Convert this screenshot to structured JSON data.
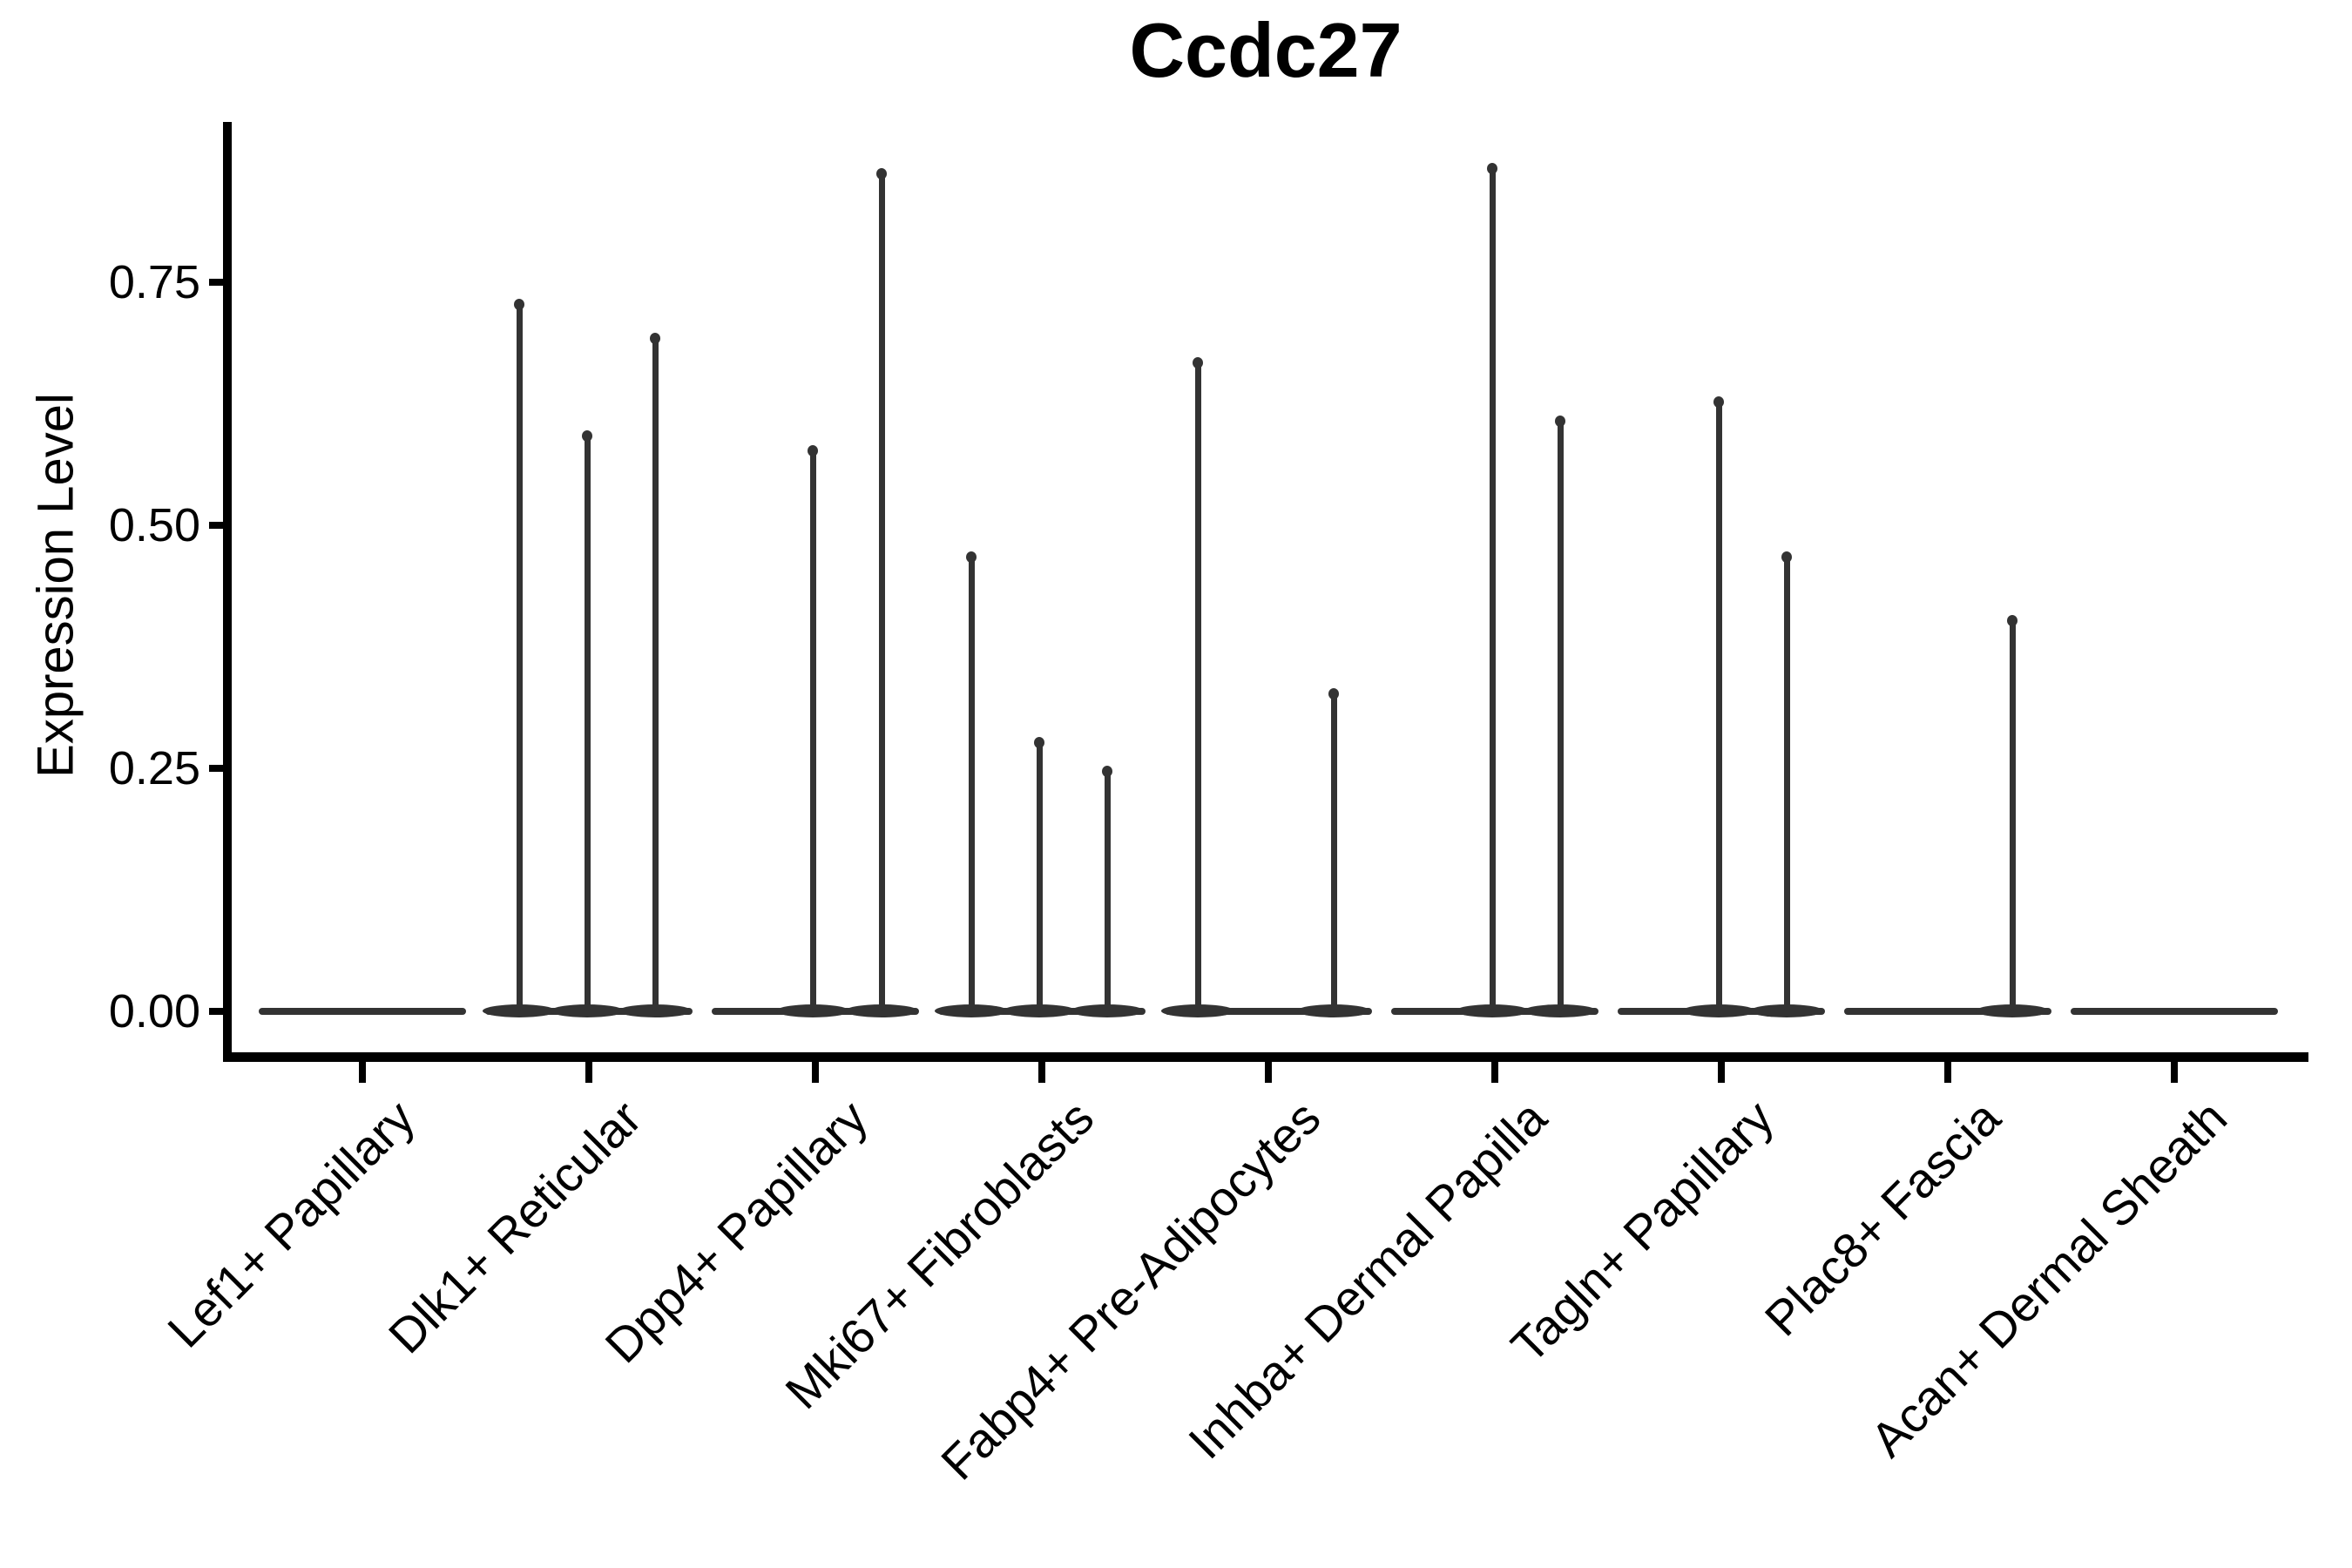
{
  "title": "Ccdc27",
  "y_axis": {
    "label": "Expression Level",
    "tick_labels": [
      "0.00",
      "0.25",
      "0.50",
      "0.75"
    ],
    "tick_values": [
      0,
      0.25,
      0.5,
      0.75
    ]
  },
  "chart_data": {
    "type": "violin",
    "title": "Ccdc27",
    "xlabel": "",
    "ylabel": "Expression Level",
    "ylim": [
      0,
      0.915
    ],
    "yticks": [
      0,
      0.25,
      0.5,
      0.75
    ],
    "ytick_labels": [
      "0.00",
      "0.25",
      "0.50",
      "0.75"
    ],
    "grid": false,
    "legend": false,
    "colors": {
      "violin": "#333333",
      "axis": "#000000",
      "text": "#000000",
      "background": "#ffffff"
    },
    "categories": [
      "Lef1+ Papillary",
      "Dlk1+ Reticular",
      "Dpp4+ Papillary",
      "Mki67+ Fibroblasts",
      "Fabp4+ Pre-Adipocytes",
      "Inhba+ Dermal Papilla",
      "Tagln+ Papillary",
      "Plac8+ Fascia",
      "Acan+ Dermal Sheath"
    ],
    "violins": [
      {
        "category": "Lef1+ Papillary",
        "baseline_at_zero": true,
        "spikes": []
      },
      {
        "category": "Dlk1+ Reticular",
        "baseline_at_zero": true,
        "spikes": [
          {
            "x_offset": -80,
            "value": 0.73
          },
          {
            "x_offset": -2,
            "value": 0.595
          },
          {
            "x_offset": 76,
            "value": 0.695
          }
        ]
      },
      {
        "category": "Dpp4+ Papillary",
        "baseline_at_zero": true,
        "spikes": [
          {
            "x_offset": -3,
            "value": 0.58
          },
          {
            "x_offset": 76,
            "value": 0.865
          }
        ]
      },
      {
        "category": "Mki67+ Fibroblasts",
        "baseline_at_zero": true,
        "spikes": [
          {
            "x_offset": -81,
            "value": 0.47
          },
          {
            "x_offset": -3,
            "value": 0.28
          },
          {
            "x_offset": 75,
            "value": 0.25
          }
        ]
      },
      {
        "category": "Fabp4+ Pre-Adipocytes",
        "baseline_at_zero": true,
        "spikes": [
          {
            "x_offset": -81,
            "value": 0.67
          },
          {
            "x_offset": 75,
            "value": 0.33
          }
        ]
      },
      {
        "category": "Inhba+ Dermal Papilla",
        "baseline_at_zero": true,
        "spikes": [
          {
            "x_offset": -3,
            "value": 0.87
          },
          {
            "x_offset": 75,
            "value": 0.61
          }
        ]
      },
      {
        "category": "Tagln+ Papillary",
        "baseline_at_zero": true,
        "spikes": [
          {
            "x_offset": -3,
            "value": 0.63
          },
          {
            "x_offset": 75,
            "value": 0.47
          }
        ]
      },
      {
        "category": "Plac8+ Fascia",
        "baseline_at_zero": true,
        "spikes": [
          {
            "x_offset": 74,
            "value": 0.405
          }
        ]
      },
      {
        "category": "Acan+ Dermal Sheath",
        "baseline_at_zero": true,
        "spikes": []
      }
    ]
  }
}
